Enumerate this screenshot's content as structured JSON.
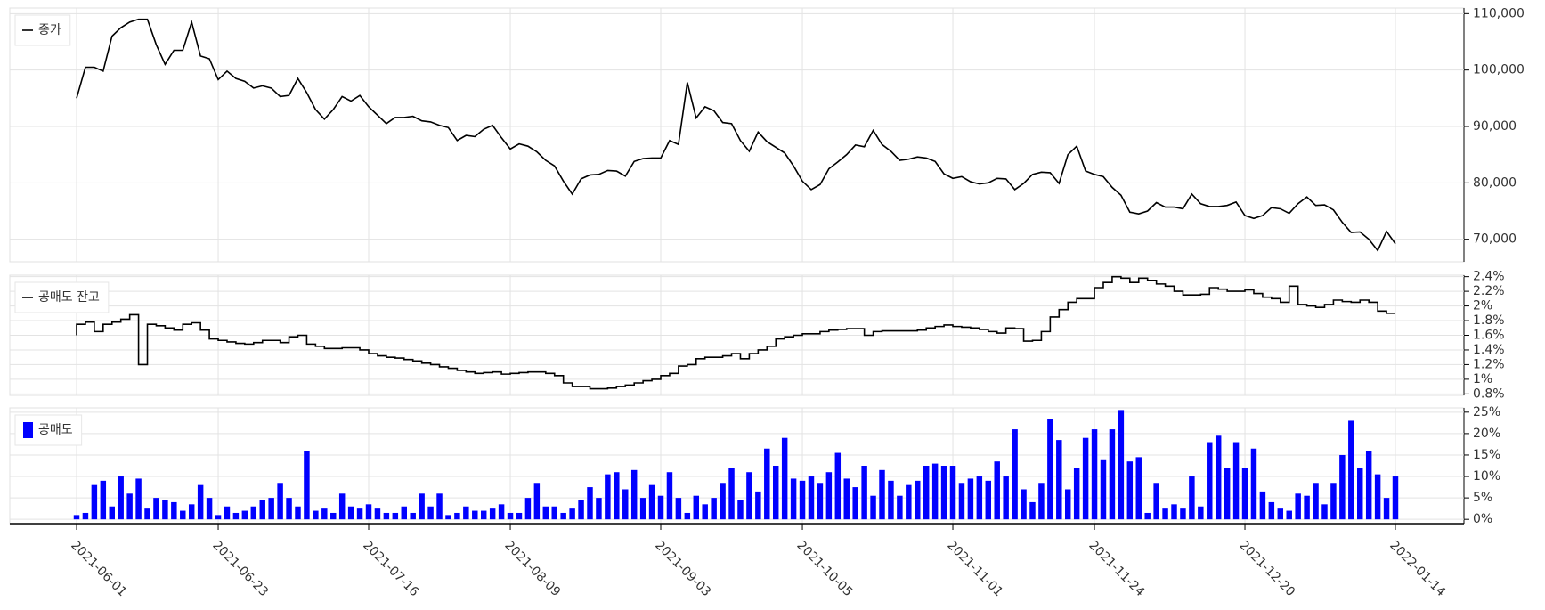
{
  "chart_data": [
    {
      "type": "line",
      "legend": "upper left",
      "grid": true,
      "series": [
        {
          "name": "종가",
          "color": "#000000",
          "values": [
            95000,
            100500,
            100500,
            99800,
            106000,
            107500,
            108500,
            109000,
            109000,
            104500,
            101000,
            103500,
            103500,
            108500,
            102500,
            102000,
            98300,
            99800,
            98500,
            98000,
            96800,
            97200,
            96800,
            95300,
            95500,
            98500,
            96000,
            93000,
            91300,
            93000,
            95300,
            94500,
            95500,
            93500,
            92000,
            90500,
            91600,
            91600,
            91800,
            91000,
            90800,
            90200,
            89800,
            87500,
            88400,
            88200,
            89500,
            90200,
            88000,
            86000,
            86900,
            86500,
            85500,
            84000,
            83000,
            80300,
            78000,
            80700,
            81400,
            81500,
            82200,
            82100,
            81200,
            83800,
            84300,
            84400,
            84400,
            87500,
            86800,
            97800,
            91500,
            93500,
            92800,
            90700,
            90500,
            87500,
            85600,
            89000,
            87300,
            86300,
            85300,
            83000,
            80300,
            78800,
            79700,
            82500,
            83700,
            85000,
            86700,
            86400,
            89300,
            86800,
            85600,
            84000,
            84200,
            84600,
            84400,
            83800,
            81600,
            80800,
            81100,
            80200,
            79800,
            80000,
            80800,
            80700,
            78800,
            79900,
            81500,
            81900,
            81800,
            79900,
            85000,
            86500,
            82100,
            81500,
            81100,
            79200,
            77800,
            74800,
            74500,
            75000,
            76500,
            75700,
            75700,
            75400,
            78000,
            76300,
            75800,
            75800,
            76000,
            76600,
            74200,
            73700,
            74200,
            75600,
            75400,
            74600,
            76300,
            77500,
            76000,
            76100,
            75200,
            73000,
            71200,
            71300,
            70000,
            68000,
            71400,
            69200
          ]
        }
      ],
      "ylim": [
        66000,
        111000
      ],
      "yticks": [
        {
          "value": 70000,
          "label": "70,000"
        },
        {
          "value": 80000,
          "label": "80,000"
        },
        {
          "value": 90000,
          "label": "90,000"
        },
        {
          "value": 100000,
          "label": "100,000"
        },
        {
          "value": 110000,
          "label": "110,000"
        }
      ]
    },
    {
      "type": "line",
      "step": true,
      "legend": "upper left",
      "grid": true,
      "series": [
        {
          "name": "공매도 잔고",
          "color": "#000000",
          "values": [
            1.6,
            1.75,
            1.78,
            1.65,
            1.75,
            1.78,
            1.82,
            1.88,
            1.2,
            1.75,
            1.73,
            1.7,
            1.67,
            1.75,
            1.77,
            1.67,
            1.55,
            1.53,
            1.51,
            1.49,
            1.48,
            1.5,
            1.53,
            1.53,
            1.5,
            1.58,
            1.6,
            1.48,
            1.45,
            1.42,
            1.42,
            1.43,
            1.43,
            1.4,
            1.35,
            1.32,
            1.3,
            1.29,
            1.27,
            1.25,
            1.22,
            1.2,
            1.17,
            1.15,
            1.12,
            1.1,
            1.08,
            1.09,
            1.1,
            1.07,
            1.08,
            1.09,
            1.1,
            1.1,
            1.08,
            1.05,
            0.95,
            0.9,
            0.9,
            0.87,
            0.87,
            0.88,
            0.9,
            0.92,
            0.95,
            0.98,
            1.0,
            1.05,
            1.08,
            1.18,
            1.2,
            1.28,
            1.3,
            1.3,
            1.32,
            1.35,
            1.28,
            1.35,
            1.4,
            1.45,
            1.55,
            1.58,
            1.6,
            1.62,
            1.62,
            1.65,
            1.67,
            1.68,
            1.69,
            1.69,
            1.6,
            1.65,
            1.66,
            1.66,
            1.66,
            1.66,
            1.67,
            1.7,
            1.72,
            1.74,
            1.72,
            1.71,
            1.7,
            1.68,
            1.65,
            1.63,
            1.7,
            1.69,
            1.52,
            1.53,
            1.65,
            1.85,
            1.95,
            2.05,
            2.1,
            2.1,
            2.25,
            2.32,
            2.4,
            2.38,
            2.32,
            2.38,
            2.35,
            2.3,
            2.27,
            2.2,
            2.15,
            2.15,
            2.16,
            2.25,
            2.23,
            2.2,
            2.2,
            2.22,
            2.17,
            2.12,
            2.1,
            2.05,
            2.27,
            2.02,
            2.0,
            1.98,
            2.02,
            2.08,
            2.06,
            2.05,
            2.08,
            2.05,
            1.93,
            1.9
          ]
        }
      ],
      "ylim": [
        0.78,
        2.42
      ],
      "yticks": [
        {
          "value": 0.8,
          "label": "0.8%"
        },
        {
          "value": 1,
          "label": "1%"
        },
        {
          "value": 1.2,
          "label": "1.2%"
        },
        {
          "value": 1.4,
          "label": "1.4%"
        },
        {
          "value": 1.6,
          "label": "1.6%"
        },
        {
          "value": 1.8,
          "label": "1.8%"
        },
        {
          "value": 2,
          "label": "2%"
        },
        {
          "value": 2.2,
          "label": "2.2%"
        },
        {
          "value": 2.4,
          "label": "2.4%"
        }
      ]
    },
    {
      "type": "bar",
      "legend": "upper left",
      "grid": true,
      "categories": [
        "2021-06-01",
        null,
        null,
        null,
        null,
        null,
        null,
        null,
        null,
        null,
        null,
        null,
        null,
        null,
        null,
        null,
        "2021-06-23",
        null,
        null,
        null,
        null,
        null,
        null,
        null,
        null,
        null,
        null,
        null,
        null,
        null,
        null,
        null,
        null,
        "2021-07-16",
        null,
        null,
        null,
        null,
        null,
        null,
        null,
        null,
        null,
        null,
        null,
        null,
        null,
        null,
        null,
        "2021-08-09",
        null,
        null,
        null,
        null,
        null,
        null,
        null,
        null,
        null,
        null,
        null,
        null,
        null,
        null,
        null,
        null,
        "2021-09-03",
        null,
        null,
        null,
        null,
        null,
        null,
        null,
        null,
        null,
        null,
        null,
        null,
        null,
        null,
        null,
        "2021-10-05",
        null,
        null,
        null,
        null,
        null,
        null,
        null,
        null,
        null,
        null,
        null,
        null,
        null,
        null,
        null,
        null,
        "2021-11-01",
        null,
        null,
        null,
        null,
        null,
        null,
        null,
        null,
        null,
        null,
        null,
        null,
        null,
        null,
        null,
        "2021-11-24",
        null,
        null,
        null,
        null,
        null,
        null,
        null,
        null,
        null,
        null,
        null,
        null,
        null,
        null,
        null,
        null,
        "2021-12-20",
        null,
        null,
        null,
        null,
        null,
        null,
        null,
        null,
        null,
        null,
        null,
        null,
        null,
        null,
        null,
        null,
        "2022-01-14"
      ],
      "series": [
        {
          "name": "공매도",
          "color": "#0000ff",
          "values": [
            1,
            1.5,
            8,
            9,
            3,
            10,
            6,
            9.5,
            2.5,
            5,
            4.5,
            4,
            2,
            3.5,
            8,
            5,
            1,
            3,
            1.5,
            2,
            3,
            4.5,
            5,
            8.5,
            5,
            3,
            16,
            2,
            2.5,
            1.5,
            6,
            3,
            2.5,
            3.5,
            2.5,
            1.5,
            1.5,
            3,
            1.5,
            6,
            3,
            6,
            1,
            1.5,
            3,
            2,
            2,
            2.5,
            3.5,
            1.5,
            1.5,
            5,
            8.5,
            3,
            3,
            1.5,
            2.5,
            4.5,
            7.5,
            5,
            10.5,
            11,
            7,
            11.5,
            5,
            8,
            5.5,
            11,
            5,
            1.5,
            5.5,
            3.5,
            5,
            8.5,
            12,
            4.5,
            11,
            6.5,
            16.5,
            12.5,
            19,
            9.5,
            9,
            10,
            8.5,
            11,
            15.5,
            9.5,
            7.5,
            12.5,
            5.5,
            11.5,
            9,
            5.5,
            8,
            9,
            12.5,
            13,
            12.5,
            12.5,
            8.5,
            9.5,
            10,
            9,
            13.5,
            10,
            21,
            7,
            4,
            8.5,
            23.5,
            18.5,
            7,
            12,
            19,
            21,
            14,
            21,
            25.5,
            13.5,
            14.5,
            1.5,
            8.5,
            2.5,
            3.5,
            2.5,
            10,
            3,
            18,
            19.5,
            12,
            18,
            12,
            16.5,
            6.5,
            4,
            2.5,
            2,
            6,
            5.5,
            8.5,
            3.5,
            8.5,
            15,
            23,
            12,
            16,
            10.5,
            5,
            10
          ]
        }
      ],
      "ylim": [
        -1,
        26
      ],
      "yticks": [
        {
          "value": 0,
          "label": "0%"
        },
        {
          "value": 5,
          "label": "5%"
        },
        {
          "value": 10,
          "label": "10%"
        },
        {
          "value": 15,
          "label": "15%"
        },
        {
          "value": 20,
          "label": "20%"
        },
        {
          "value": 25,
          "label": "25%"
        }
      ]
    }
  ]
}
